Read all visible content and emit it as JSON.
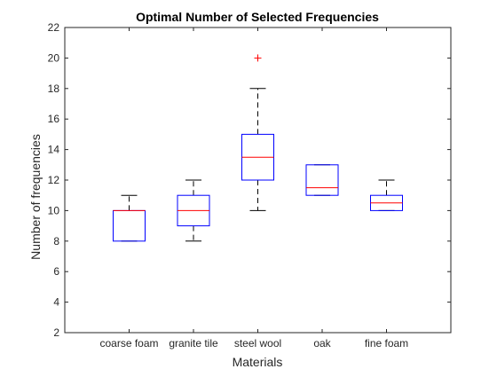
{
  "chart_data": {
    "type": "box",
    "title": "Optimal Number of Selected Frequencies",
    "xlabel": "Materials",
    "ylabel": "Number of frequencies",
    "ylim": [
      2,
      22
    ],
    "yticks": [
      2,
      4,
      6,
      8,
      10,
      12,
      14,
      16,
      18,
      20,
      22
    ],
    "grid": false,
    "categories": [
      "coarse foam",
      "granite tile",
      "steel wool",
      "oak",
      "fine foam"
    ],
    "boxes": [
      {
        "category": "coarse foam",
        "whisker_low": 8,
        "q1": 8,
        "median": 10,
        "q3": 10,
        "whisker_high": 11,
        "outliers": []
      },
      {
        "category": "granite tile",
        "whisker_low": 8,
        "q1": 9,
        "median": 10,
        "q3": 11,
        "whisker_high": 12,
        "outliers": []
      },
      {
        "category": "steel wool",
        "whisker_low": 10,
        "q1": 12,
        "median": 13.5,
        "q3": 15,
        "whisker_high": 18,
        "outliers": [
          20
        ]
      },
      {
        "category": "oak",
        "whisker_low": 11,
        "q1": 11,
        "median": 11.5,
        "q3": 13,
        "whisker_high": 13,
        "outliers": []
      },
      {
        "category": "fine foam",
        "whisker_low": 10,
        "q1": 10,
        "median": 10.5,
        "q3": 11,
        "whisker_high": 12,
        "outliers": []
      }
    ],
    "colors": {
      "box": "#0000ff",
      "median": "#ff0000",
      "whisker": "#000000",
      "outlier": "#ff0000",
      "axes": "#262626"
    }
  }
}
